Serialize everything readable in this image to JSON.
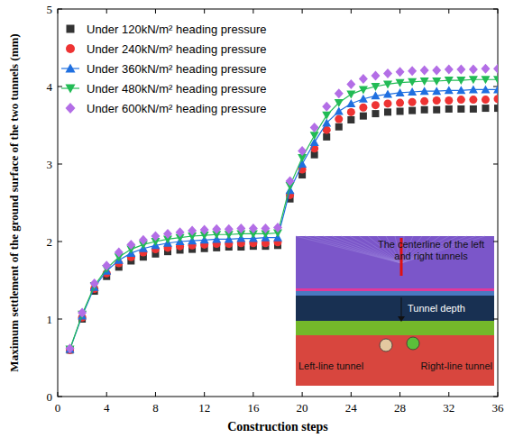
{
  "chart_data": {
    "type": "line",
    "x_label": "Construction steps",
    "y_label": "Maximum settlement of the ground surface of the two tunnels (mm)",
    "x": [
      1,
      2,
      3,
      4,
      5,
      6,
      7,
      8,
      9,
      10,
      11,
      12,
      13,
      14,
      15,
      16,
      17,
      18,
      19,
      20,
      21,
      22,
      23,
      24,
      25,
      26,
      27,
      28,
      29,
      30,
      31,
      32,
      33,
      34,
      35,
      36
    ],
    "xlim": [
      0,
      36
    ],
    "xticks": [
      0,
      4,
      8,
      12,
      16,
      20,
      24,
      28,
      32,
      36
    ],
    "ylim": [
      0,
      5
    ],
    "yticks": [
      0,
      1,
      2,
      3,
      4,
      5
    ],
    "grid": false,
    "legend": "upper left",
    "series": [
      {
        "name": "Under 120kN/m² heading pressure",
        "color": "#333333",
        "marker": "square",
        "line_style": "none",
        "values": [
          0.6,
          1.0,
          1.36,
          1.55,
          1.67,
          1.75,
          1.8,
          1.84,
          1.87,
          1.89,
          1.9,
          1.91,
          1.92,
          1.93,
          1.93,
          1.94,
          1.94,
          1.95,
          2.55,
          2.86,
          3.12,
          3.35,
          3.48,
          3.57,
          3.62,
          3.65,
          3.67,
          3.68,
          3.69,
          3.7,
          3.7,
          3.71,
          3.71,
          3.71,
          3.72,
          3.72
        ]
      },
      {
        "name": "Under 240kN/m² heading pressure",
        "color": "#ee3333",
        "marker": "circle",
        "line_style": "none",
        "values": [
          0.6,
          1.02,
          1.39,
          1.59,
          1.72,
          1.8,
          1.86,
          1.9,
          1.92,
          1.94,
          1.95,
          1.96,
          1.97,
          1.97,
          1.98,
          1.98,
          1.98,
          1.99,
          2.6,
          2.93,
          3.2,
          3.44,
          3.58,
          3.67,
          3.73,
          3.76,
          3.78,
          3.79,
          3.8,
          3.81,
          3.82,
          3.82,
          3.83,
          3.83,
          3.83,
          3.84
        ]
      },
      {
        "name": "Under 360kN/m² heading pressure",
        "color": "#1f6fe0",
        "marker": "triangle",
        "line_style": "solid",
        "values": [
          0.61,
          1.04,
          1.41,
          1.62,
          1.76,
          1.85,
          1.91,
          1.95,
          1.98,
          2.0,
          2.01,
          2.02,
          2.03,
          2.03,
          2.04,
          2.04,
          2.05,
          2.05,
          2.66,
          3.0,
          3.28,
          3.53,
          3.68,
          3.78,
          3.84,
          3.88,
          3.9,
          3.92,
          3.93,
          3.94,
          3.94,
          3.95,
          3.95,
          3.96,
          3.96,
          3.96
        ]
      },
      {
        "name": "Under 480kN/m² heading pressure",
        "color": "#22bb55",
        "marker": "triangle-down",
        "line_style": "solid",
        "values": [
          0.61,
          1.06,
          1.43,
          1.65,
          1.8,
          1.9,
          1.96,
          2.0,
          2.03,
          2.05,
          2.07,
          2.08,
          2.09,
          2.09,
          2.1,
          2.1,
          2.1,
          2.11,
          2.72,
          3.08,
          3.37,
          3.63,
          3.79,
          3.9,
          3.96,
          4.0,
          4.03,
          4.05,
          4.06,
          4.07,
          4.07,
          4.08,
          4.08,
          4.09,
          4.09,
          4.09
        ]
      },
      {
        "name": "Under 600kN/m² heading pressure",
        "color": "#b36ee6",
        "marker": "diamond",
        "line_style": "none",
        "values": [
          0.62,
          1.08,
          1.46,
          1.69,
          1.86,
          1.96,
          2.02,
          2.07,
          2.1,
          2.12,
          2.14,
          2.15,
          2.16,
          2.16,
          2.17,
          2.17,
          2.17,
          2.18,
          2.78,
          3.17,
          3.47,
          3.74,
          3.91,
          4.03,
          4.1,
          4.14,
          4.17,
          4.19,
          4.2,
          4.21,
          4.21,
          4.22,
          4.22,
          4.22,
          4.23,
          4.23
        ]
      }
    ],
    "annotations": [
      "The centerline of the left and right tunnels",
      "Tunnel depth",
      "Left-line tunnel",
      "Right-line tunnel"
    ]
  }
}
